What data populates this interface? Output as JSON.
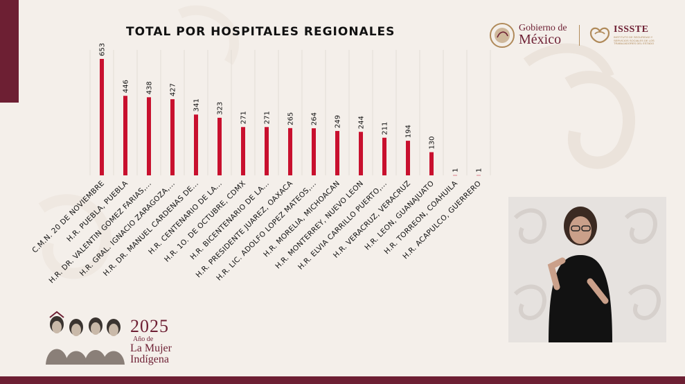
{
  "header": {
    "title": "TOTAL POR HOSPITALES REGIONALES"
  },
  "logos": {
    "gov_line1": "Gobierno de",
    "gov_line2": "México",
    "issste_name": "ISSSTE",
    "issste_subtitle": "INSTITUTO DE SEGURIDAD Y SERVICIOS SOCIALES DE LOS TRABAJADORES DEL ESTADO"
  },
  "branding": {
    "year": "2025",
    "year_of": "Año de",
    "line1": "La Mujer",
    "line2": "Indígena"
  },
  "colors": {
    "bar": "#c8102e",
    "accent": "#6d1f33",
    "gold": "#b08a5a",
    "background": "#f4efea"
  },
  "chart_data": {
    "type": "bar",
    "title": "TOTAL POR HOSPITALES REGIONALES",
    "categories": [
      "C.M.N. 20 DE NOVIEMBRE",
      "H.R. PUEBLA, PUEBLA",
      "H.R. DR. VALENTIN GOMEZ FARIAS,...",
      "H.R. GRAL. IGNACIO ZARAGOZA,...",
      "H.R. DR. MANUEL CARDENAS DE...",
      "H.R. CENTENARIO DE LA...",
      "H.R. 1O. DE OCTUBRE, CDMX",
      "H.R. BICENTENARIO DE LA...",
      "H.R. PRESIDENTE JUAREZ, OAXACA",
      "H.R. LIC. ADOLFO LOPEZ MATEOS,...",
      "H.R. MORELIA, MICHOACAN",
      "H.R. MONTERREY, NUEVO LEON",
      "H.R. ELVIA CARRILLO PUERTO,...",
      "H.R. VERACRUZ, VERACRUZ",
      "H.R. LEON, GUANAJUATO",
      "H.R. TORREON, COAHUILA",
      "H.R. ACAPULCO, GUERRERO"
    ],
    "values": [
      653,
      446,
      438,
      427,
      341,
      323,
      271,
      271,
      265,
      264,
      249,
      244,
      211,
      194,
      130,
      1,
      1
    ],
    "ylim": [
      0,
      653
    ],
    "grid": true,
    "data_labels": true,
    "legend": "none"
  }
}
